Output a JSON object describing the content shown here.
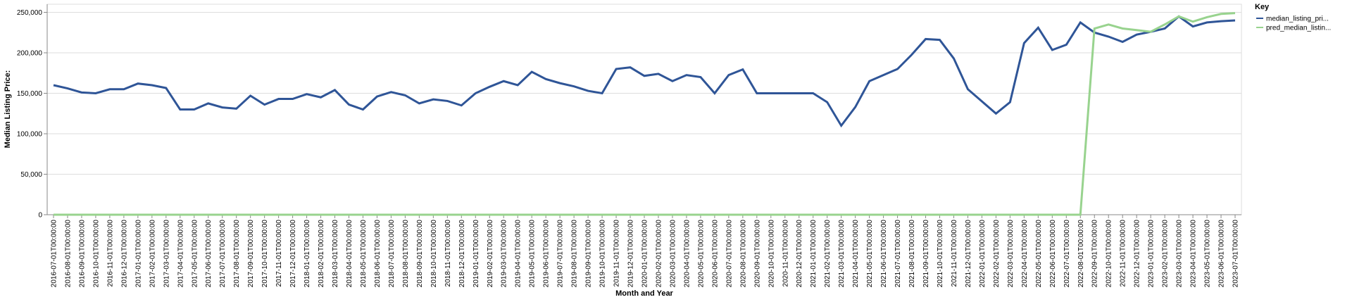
{
  "chart_data": {
    "type": "line",
    "xlabel": "Month and Year",
    "ylabel": "Median Listing Price:",
    "legend_title": "Key",
    "legend_position": "right",
    "grid": true,
    "categories": [
      "2016-07-01T00:00:00",
      "2016-08-01T00:00:00",
      "2016-09-01T00:00:00",
      "2016-10-01T00:00:00",
      "2016-11-01T00:00:00",
      "2016-12-01T00:00:00",
      "2017-01-01T00:00:00",
      "2017-02-01T00:00:00",
      "2017-03-01T00:00:00",
      "2017-04-01T00:00:00",
      "2017-05-01T00:00:00",
      "2017-06-01T00:00:00",
      "2017-07-01T00:00:00",
      "2017-08-01T00:00:00",
      "2017-09-01T00:00:00",
      "2017-10-01T00:00:00",
      "2017-11-01T00:00:00",
      "2017-12-01T00:00:00",
      "2018-01-01T00:00:00",
      "2018-02-01T00:00:00",
      "2018-03-01T00:00:00",
      "2018-04-01T00:00:00",
      "2018-05-01T00:00:00",
      "2018-06-01T00:00:00",
      "2018-07-01T00:00:00",
      "2018-08-01T00:00:00",
      "2018-09-01T00:00:00",
      "2018-10-01T00:00:00",
      "2018-11-01T00:00:00",
      "2018-12-01T00:00:00",
      "2019-01-01T00:00:00",
      "2019-02-01T00:00:00",
      "2019-03-01T00:00:00",
      "2019-04-01T00:00:00",
      "2019-05-01T00:00:00",
      "2019-06-01T00:00:00",
      "2019-07-01T00:00:00",
      "2019-08-01T00:00:00",
      "2019-09-01T00:00:00",
      "2019-10-01T00:00:00",
      "2019-11-01T00:00:00",
      "2019-12-01T00:00:00",
      "2020-01-01T00:00:00",
      "2020-02-01T00:00:00",
      "2020-03-01T00:00:00",
      "2020-04-01T00:00:00",
      "2020-05-01T00:00:00",
      "2020-06-01T00:00:00",
      "2020-07-01T00:00:00",
      "2020-08-01T00:00:00",
      "2020-09-01T00:00:00",
      "2020-10-01T00:00:00",
      "2020-11-01T00:00:00",
      "2020-12-01T00:00:00",
      "2021-01-01T00:00:00",
      "2021-02-01T00:00:00",
      "2021-03-01T00:00:00",
      "2021-04-01T00:00:00",
      "2021-05-01T00:00:00",
      "2021-06-01T00:00:00",
      "2021-07-01T00:00:00",
      "2021-08-01T00:00:00",
      "2021-09-01T00:00:00",
      "2021-10-01T00:00:00",
      "2021-11-01T00:00:00",
      "2021-12-01T00:00:00",
      "2022-01-01T00:00:00",
      "2022-02-01T00:00:00",
      "2022-03-01T00:00:00",
      "2022-04-01T00:00:00",
      "2022-05-01T00:00:00",
      "2022-06-01T00:00:00",
      "2022-07-01T00:00:00",
      "2022-08-01T00:00:00",
      "2022-09-01T00:00:00",
      "2022-10-01T00:00:00",
      "2022-11-01T00:00:00",
      "2022-12-01T00:00:00",
      "2023-01-01T00:00:00",
      "2023-02-01T00:00:00",
      "2023-03-01T00:00:00",
      "2023-04-01T00:00:00",
      "2023-05-01T00:00:00",
      "2023-06-01T00:00:00",
      "2023-07-01T00:00:00"
    ],
    "series": [
      {
        "name": "median_listing_pri...",
        "color": "#2f5597",
        "values": [
          160000,
          156000,
          151000,
          150000,
          155000,
          155000,
          162000,
          160000,
          156500,
          130000,
          130000,
          137500,
          132500,
          131000,
          147000,
          136000,
          143000,
          143000,
          149000,
          145000,
          154000,
          136000,
          130000,
          146000,
          151500,
          147500,
          137500,
          142500,
          140500,
          135000,
          150000,
          158000,
          165000,
          160000,
          176500,
          167500,
          162500,
          158500,
          153000,
          150000,
          180000,
          182000,
          171500,
          174000,
          165000,
          172500,
          170000,
          150000,
          172500,
          179500,
          150000,
          150000,
          150000,
          150000,
          150000,
          139000,
          110000,
          133000,
          165000,
          172500,
          180000,
          197500,
          217000,
          216000,
          193000,
          155000,
          140000,
          125000,
          139000,
          212000,
          231000,
          203500,
          210000,
          237500,
          225000,
          220000,
          213500,
          222500,
          226000,
          230000,
          245000,
          232500,
          237500,
          239000,
          240000
        ]
      },
      {
        "name": "pred_median_listin...",
        "color": "#98d38e",
        "values": [
          0,
          0,
          0,
          0,
          0,
          0,
          0,
          0,
          0,
          0,
          0,
          0,
          0,
          0,
          0,
          0,
          0,
          0,
          0,
          0,
          0,
          0,
          0,
          0,
          0,
          0,
          0,
          0,
          0,
          0,
          0,
          0,
          0,
          0,
          0,
          0,
          0,
          0,
          0,
          0,
          0,
          0,
          0,
          0,
          0,
          0,
          0,
          0,
          0,
          0,
          0,
          0,
          0,
          0,
          0,
          0,
          0,
          0,
          0,
          0,
          0,
          0,
          0,
          0,
          0,
          0,
          0,
          0,
          0,
          0,
          0,
          0,
          0,
          0,
          230000,
          235000,
          230000,
          228000,
          226000,
          235000,
          245000,
          238500,
          244000,
          248000,
          249000
        ]
      }
    ],
    "ylim": [
      0,
      260000
    ],
    "yticks": [
      0,
      {
        "value": 50000,
        "label": "50,000"
      },
      {
        "value": 100000,
        "label": "100,000"
      },
      {
        "value": 150000,
        "label": "150,000"
      },
      {
        "value": 200000,
        "label": "200,000"
      },
      {
        "value": 250000,
        "label": "250,000"
      }
    ]
  }
}
